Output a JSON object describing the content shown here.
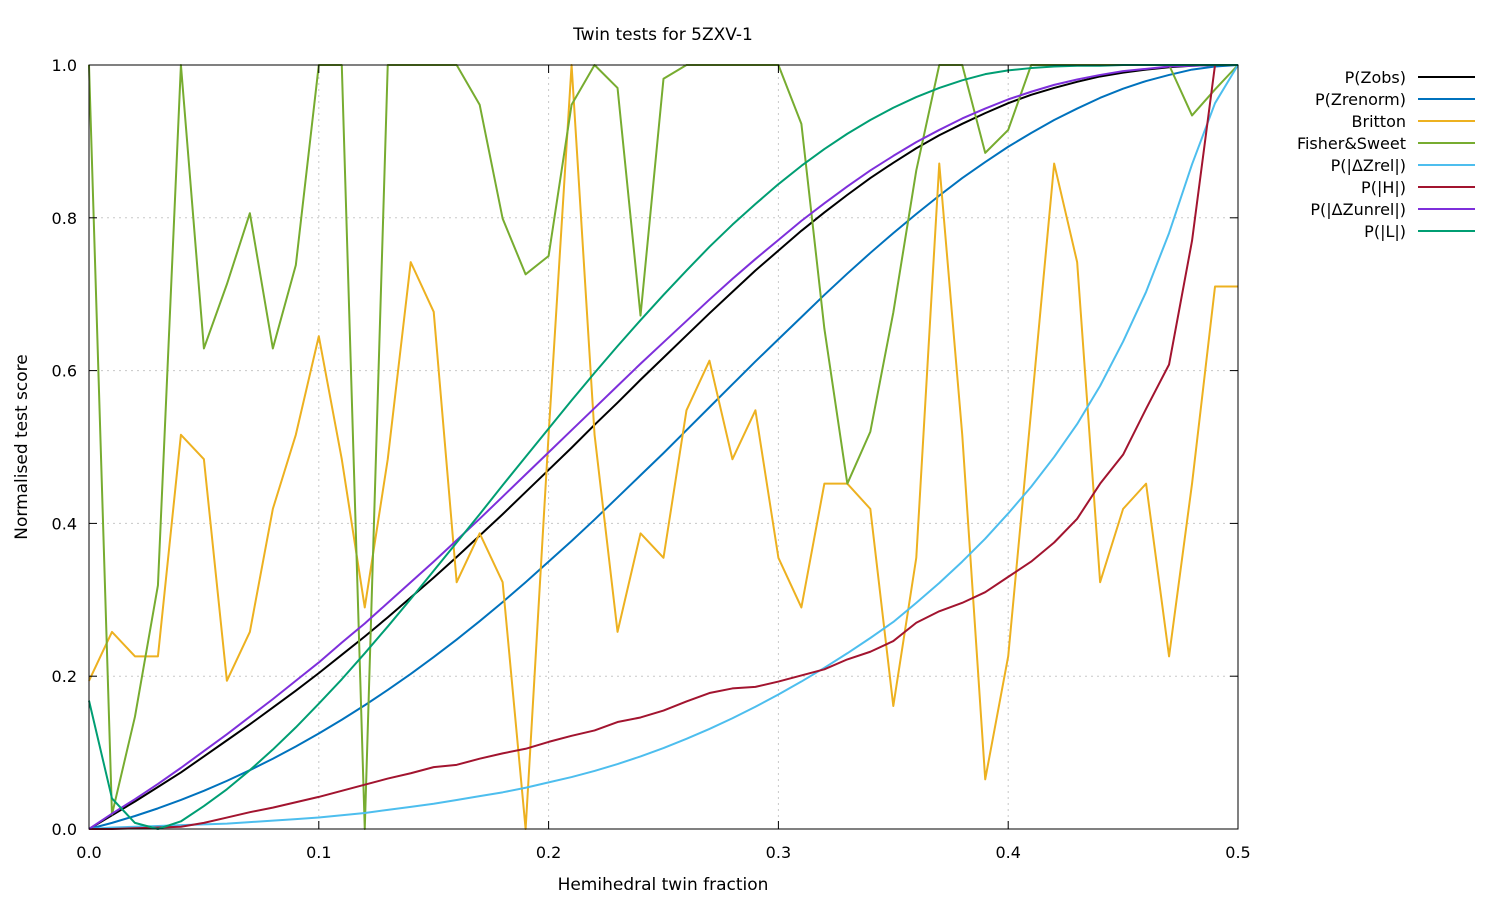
{
  "chart_data": {
    "type": "line",
    "title": "Twin tests for 5ZXV-1",
    "xlabel": "Hemihedral twin fraction",
    "ylabel": "Normalised test score",
    "xlim": [
      0,
      0.5
    ],
    "ylim": [
      0,
      1
    ],
    "xticks": [
      "0.0",
      "0.1",
      "0.2",
      "0.3",
      "0.4",
      "0.5"
    ],
    "yticks": [
      "0.0",
      "0.2",
      "0.4",
      "0.6",
      "0.8",
      "1.0"
    ],
    "grid": true,
    "legend_position": "outside-right",
    "x": [
      0.0,
      0.01,
      0.02,
      0.03,
      0.04,
      0.05,
      0.06,
      0.07,
      0.08,
      0.09,
      0.1,
      0.11,
      0.12,
      0.13,
      0.14,
      0.15,
      0.16,
      0.17,
      0.18,
      0.19,
      0.2,
      0.21,
      0.22,
      0.23,
      0.24,
      0.25,
      0.26,
      0.27,
      0.28,
      0.29,
      0.3,
      0.31,
      0.32,
      0.33,
      0.34,
      0.35,
      0.36,
      0.37,
      0.38,
      0.39,
      0.4,
      0.41,
      0.42,
      0.43,
      0.44,
      0.45,
      0.46,
      0.47,
      0.48,
      0.49,
      0.5
    ],
    "series": [
      {
        "name": "P(Zobs)",
        "color": "#000000",
        "values": [
          0,
          0.018,
          0.036,
          0.055,
          0.074,
          0.095,
          0.116,
          0.137,
          0.159,
          0.181,
          0.204,
          0.228,
          0.252,
          0.277,
          0.303,
          0.329,
          0.356,
          0.384,
          0.412,
          0.441,
          0.47,
          0.499,
          0.529,
          0.558,
          0.588,
          0.617,
          0.646,
          0.675,
          0.703,
          0.731,
          0.757,
          0.783,
          0.807,
          0.83,
          0.852,
          0.872,
          0.891,
          0.908,
          0.923,
          0.937,
          0.95,
          0.961,
          0.97,
          0.978,
          0.985,
          0.99,
          0.994,
          0.997,
          0.999,
          1.0,
          1.0
        ]
      },
      {
        "name": "P(Zrenorm)",
        "color": "#0072bd",
        "values": [
          0,
          0.008,
          0.017,
          0.027,
          0.038,
          0.05,
          0.063,
          0.077,
          0.092,
          0.108,
          0.125,
          0.143,
          0.162,
          0.182,
          0.203,
          0.225,
          0.248,
          0.272,
          0.297,
          0.323,
          0.35,
          0.377,
          0.405,
          0.434,
          0.463,
          0.492,
          0.522,
          0.552,
          0.582,
          0.612,
          0.641,
          0.67,
          0.699,
          0.727,
          0.754,
          0.78,
          0.805,
          0.829,
          0.852,
          0.873,
          0.893,
          0.911,
          0.928,
          0.943,
          0.957,
          0.969,
          0.979,
          0.987,
          0.994,
          0.998,
          1.0
        ]
      },
      {
        "name": "Britton",
        "color": "#edb120",
        "values": [
          0.194,
          0.258,
          0.226,
          0.226,
          0.516,
          0.484,
          0.194,
          0.258,
          0.419,
          0.516,
          0.645,
          0.484,
          0.29,
          0.484,
          0.742,
          0.677,
          0.323,
          0.387,
          0.323,
          0.0,
          0.516,
          1.0,
          0.516,
          0.258,
          0.387,
          0.355,
          0.548,
          0.613,
          0.484,
          0.548,
          0.355,
          0.29,
          0.452,
          0.452,
          0.419,
          0.161,
          0.355,
          0.871,
          0.516,
          0.065,
          0.226,
          0.548,
          0.871,
          0.742,
          0.323,
          0.419,
          0.452,
          0.226,
          0.452,
          0.71,
          0.71
        ]
      },
      {
        "name": "Fisher&Sweet",
        "color": "#77ac30",
        "values": [
          1.0,
          0.019,
          0.147,
          0.319,
          1.0,
          0.629,
          0.713,
          0.806,
          0.629,
          0.738,
          1.0,
          1.0,
          0.0,
          1.0,
          1.0,
          1.0,
          1.0,
          0.948,
          0.799,
          0.726,
          0.75,
          0.948,
          1.0,
          0.97,
          0.672,
          0.982,
          1.0,
          1.0,
          1.0,
          1.0,
          1.0,
          0.923,
          0.655,
          0.452,
          0.52,
          0.676,
          0.862,
          1.0,
          1.0,
          0.885,
          0.915,
          1.0,
          1.0,
          1.0,
          1.0,
          1.0,
          1.0,
          1.0,
          0.934,
          0.968,
          1.0
        ]
      },
      {
        "name": "P(|ΔZrel|)",
        "color": "#4dbeee",
        "values": [
          0,
          0.002,
          0.003,
          0.004,
          0.005,
          0.006,
          0.007,
          0.009,
          0.011,
          0.013,
          0.015,
          0.018,
          0.021,
          0.025,
          0.029,
          0.033,
          0.038,
          0.043,
          0.048,
          0.054,
          0.061,
          0.068,
          0.076,
          0.085,
          0.095,
          0.106,
          0.118,
          0.131,
          0.145,
          0.16,
          0.176,
          0.193,
          0.211,
          0.23,
          0.25,
          0.271,
          0.296,
          0.322,
          0.35,
          0.38,
          0.413,
          0.448,
          0.487,
          0.53,
          0.58,
          0.638,
          0.703,
          0.78,
          0.87,
          0.95,
          1.0
        ]
      },
      {
        "name": "P(|H|)",
        "color": "#a2142f",
        "values": [
          0,
          0.0,
          0.001,
          0.002,
          0.003,
          0.008,
          0.015,
          0.022,
          0.028,
          0.035,
          0.042,
          0.05,
          0.058,
          0.066,
          0.073,
          0.081,
          0.084,
          0.092,
          0.099,
          0.105,
          0.114,
          0.122,
          0.129,
          0.14,
          0.146,
          0.155,
          0.167,
          0.178,
          0.184,
          0.186,
          0.193,
          0.201,
          0.209,
          0.222,
          0.232,
          0.246,
          0.27,
          0.285,
          0.296,
          0.31,
          0.33,
          0.35,
          0.375,
          0.406,
          0.452,
          0.49,
          0.55,
          0.608,
          0.77,
          1.0,
          1.0
        ]
      },
      {
        "name": "P(|ΔZunrel|)",
        "color": "#7e2fdb",
        "values": [
          0,
          0.02,
          0.039,
          0.059,
          0.08,
          0.102,
          0.124,
          0.147,
          0.17,
          0.194,
          0.218,
          0.244,
          0.269,
          0.296,
          0.323,
          0.35,
          0.378,
          0.406,
          0.435,
          0.464,
          0.493,
          0.522,
          0.551,
          0.58,
          0.609,
          0.637,
          0.665,
          0.693,
          0.72,
          0.746,
          0.771,
          0.796,
          0.819,
          0.841,
          0.862,
          0.881,
          0.899,
          0.915,
          0.93,
          0.943,
          0.955,
          0.965,
          0.974,
          0.981,
          0.987,
          0.992,
          0.995,
          0.998,
          0.999,
          1.0,
          1.0
        ]
      },
      {
        "name": "P(|L|)",
        "color": "#009e73",
        "values": [
          0.168,
          0.04,
          0.008,
          0.0,
          0.01,
          0.03,
          0.052,
          0.077,
          0.104,
          0.133,
          0.164,
          0.196,
          0.23,
          0.265,
          0.301,
          0.338,
          0.375,
          0.412,
          0.45,
          0.487,
          0.524,
          0.561,
          0.597,
          0.632,
          0.666,
          0.699,
          0.731,
          0.762,
          0.791,
          0.818,
          0.844,
          0.868,
          0.89,
          0.91,
          0.928,
          0.944,
          0.958,
          0.97,
          0.98,
          0.988,
          0.993,
          0.996,
          0.998,
          0.999,
          0.999,
          1.0,
          1.0,
          1.0,
          1.0,
          1.0,
          1.0
        ]
      }
    ]
  }
}
